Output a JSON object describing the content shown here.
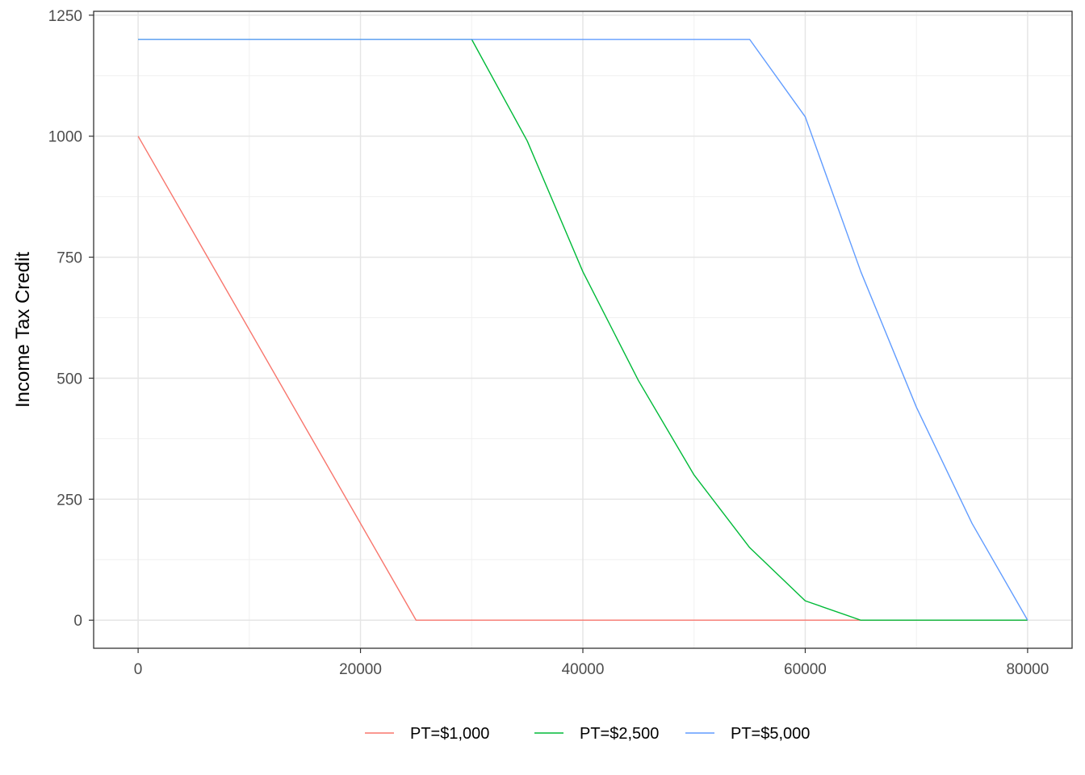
{
  "chart_data": {
    "type": "line",
    "title": "",
    "xlabel": "",
    "ylabel": "Income Tax Credit",
    "xlim": [
      -4000,
      84000
    ],
    "ylim": [
      -58,
      1258
    ],
    "x_ticks": [
      0,
      20000,
      40000,
      60000,
      80000
    ],
    "x_tick_labels": [
      "0",
      "20000",
      "40000",
      "60000",
      "80000"
    ],
    "y_ticks": [
      0,
      250,
      500,
      750,
      1000,
      1250
    ],
    "y_tick_labels": [
      "0",
      "250",
      "500",
      "750",
      "1000",
      "1250"
    ],
    "grid": true,
    "legend_position": "bottom",
    "series": [
      {
        "name": "PT=$1,000",
        "color": "#F8766D",
        "points": [
          [
            0,
            1000
          ],
          [
            25000,
            0
          ],
          [
            80000,
            0
          ]
        ]
      },
      {
        "name": "PT=$2,500",
        "color": "#00BA38",
        "points": [
          [
            0,
            1200
          ],
          [
            30000,
            1200
          ],
          [
            35000,
            990
          ],
          [
            40000,
            720
          ],
          [
            45000,
            495
          ],
          [
            50000,
            300
          ],
          [
            55000,
            150
          ],
          [
            60000,
            40
          ],
          [
            65000,
            0
          ],
          [
            80000,
            0
          ]
        ]
      },
      {
        "name": "PT=$5,000",
        "color": "#619CFF",
        "points": [
          [
            0,
            1200
          ],
          [
            55000,
            1200
          ],
          [
            60000,
            1040
          ],
          [
            65000,
            720
          ],
          [
            70000,
            440
          ],
          [
            75000,
            200
          ],
          [
            80000,
            0
          ]
        ]
      }
    ]
  }
}
